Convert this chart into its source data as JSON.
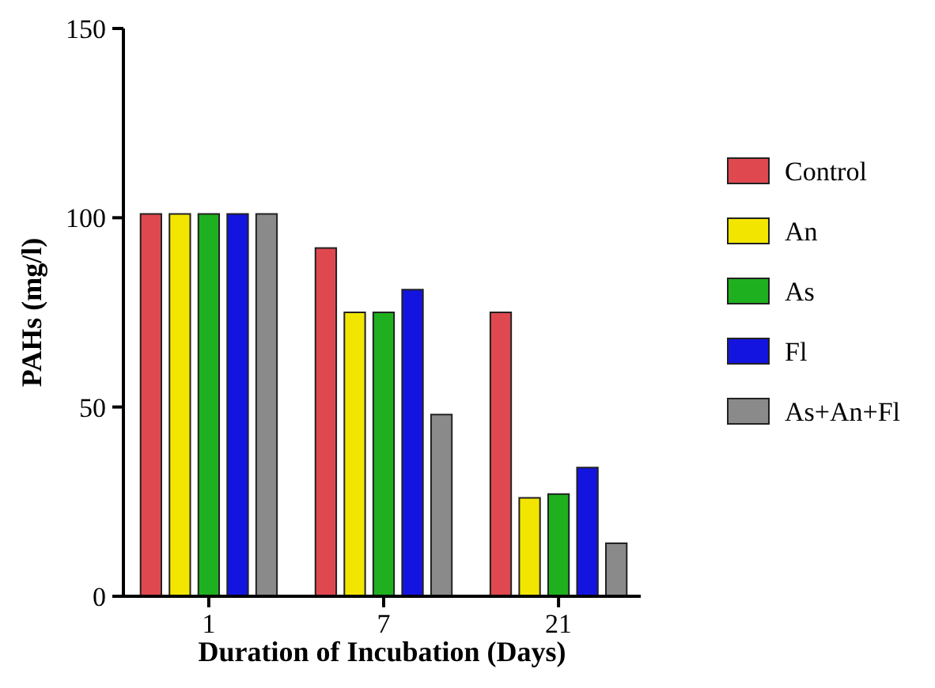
{
  "chart_data": {
    "type": "bar",
    "xlabel": "Duration of Incubation (Days)",
    "ylabel": "PAHs (mg/l)",
    "categories": [
      "1",
      "7",
      "21"
    ],
    "series": [
      {
        "name": "Control",
        "color": "#e04850",
        "values": [
          101,
          92,
          75
        ]
      },
      {
        "name": "An",
        "color": "#f2e600",
        "values": [
          101,
          75,
          26
        ]
      },
      {
        "name": "As",
        "color": "#1fb01f",
        "values": [
          101,
          75,
          27
        ]
      },
      {
        "name": "Fl",
        "color": "#1414e0",
        "values": [
          101,
          81,
          34
        ]
      },
      {
        "name": "As+An+Fl",
        "color": "#8a8a8a",
        "values": [
          101,
          48,
          14
        ]
      }
    ],
    "ylim": [
      0,
      150
    ],
    "yticks": [
      0,
      50,
      100,
      150
    ],
    "grid": false,
    "legend": "right"
  }
}
